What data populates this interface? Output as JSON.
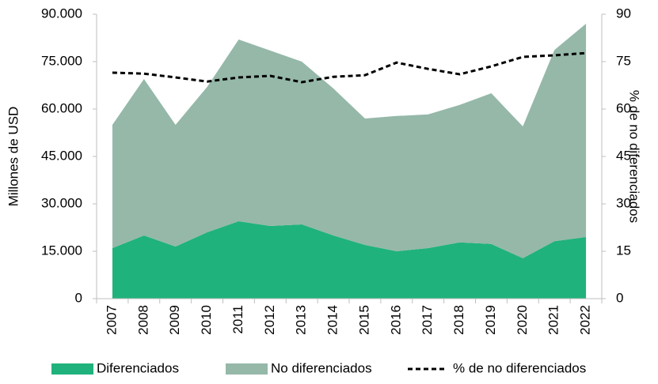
{
  "chart_data": {
    "type": "area",
    "stacked": true,
    "y_label": "Millones de USD",
    "y2_label": "% de no diferenciados",
    "categories": [
      "2007",
      "2008",
      "2009",
      "2010",
      "2011",
      "2012",
      "2013",
      "2014",
      "2015",
      "2016",
      "2017",
      "2018",
      "2019",
      "2020",
      "2021",
      "2022"
    ],
    "series": [
      {
        "name": "Diferenciados",
        "color": "#20b27c",
        "values": [
          16000,
          20000,
          16500,
          21000,
          24500,
          23000,
          23500,
          20000,
          17000,
          15000,
          16000,
          17800,
          17300,
          12800,
          18200,
          19500
        ]
      },
      {
        "name": "No diferenciados",
        "color": "#95b8a9",
        "values": [
          39000,
          49500,
          38500,
          46000,
          57500,
          55500,
          51500,
          46500,
          40000,
          42800,
          42300,
          43500,
          47700,
          41700,
          60500,
          67500
        ]
      },
      {
        "name": "% de no diferenciados",
        "type": "line",
        "axis": "y2",
        "color": "#000000",
        "dashed": true,
        "values": [
          71.5,
          71.2,
          70,
          68.7,
          70,
          70.5,
          68.5,
          70.2,
          70.7,
          74.7,
          72.7,
          71,
          73.5,
          76.5,
          77,
          77.7
        ]
      }
    ],
    "ylim": [
      0,
      90000
    ],
    "yticks": [
      {
        "value": 0,
        "label": "0"
      },
      {
        "value": 15000,
        "label": "15.000"
      },
      {
        "value": 30000,
        "label": "30.000"
      },
      {
        "value": 45000,
        "label": "45.000"
      },
      {
        "value": 60000,
        "label": "60.000"
      },
      {
        "value": 75000,
        "label": "75.000"
      },
      {
        "value": 90000,
        "label": "90.000"
      }
    ],
    "y2lim": [
      0,
      90
    ],
    "y2ticks": [
      0,
      15,
      30,
      45,
      60,
      75,
      90
    ],
    "legend": "bottom"
  }
}
